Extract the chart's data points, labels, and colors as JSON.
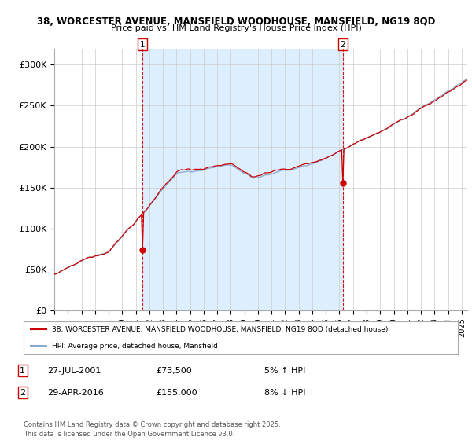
{
  "title_line1": "38, WORCESTER AVENUE, MANSFIELD WOODHOUSE, MANSFIELD, NG19 8QD",
  "title_line2": "Price paid vs. HM Land Registry's House Price Index (HPI)",
  "background_color": "#ffffff",
  "plot_bg_color": "#ffffff",
  "grid_color": "#cccccc",
  "line1_color": "#cc0000",
  "line2_color": "#88aacc",
  "shade_color": "#ddeeff",
  "marker1_label": "27-JUL-2001",
  "marker1_price": "£73,500",
  "marker1_pct": "5% ↑ HPI",
  "marker2_label": "29-APR-2016",
  "marker2_price": "£155,000",
  "marker2_pct": "8% ↓ HPI",
  "legend_line1": "38, WORCESTER AVENUE, MANSFIELD WOODHOUSE, MANSFIELD, NG19 8QD (detached house)",
  "legend_line2": "HPI: Average price, detached house, Mansfield",
  "footer": "Contains HM Land Registry data © Crown copyright and database right 2025.\nThis data is licensed under the Open Government Licence v3.0.",
  "ylim": [
    0,
    320000
  ],
  "yticks": [
    0,
    50000,
    100000,
    150000,
    200000,
    250000,
    300000
  ],
  "ytick_labels": [
    "£0",
    "£50K",
    "£100K",
    "£150K",
    "£200K",
    "£250K",
    "£300K"
  ]
}
